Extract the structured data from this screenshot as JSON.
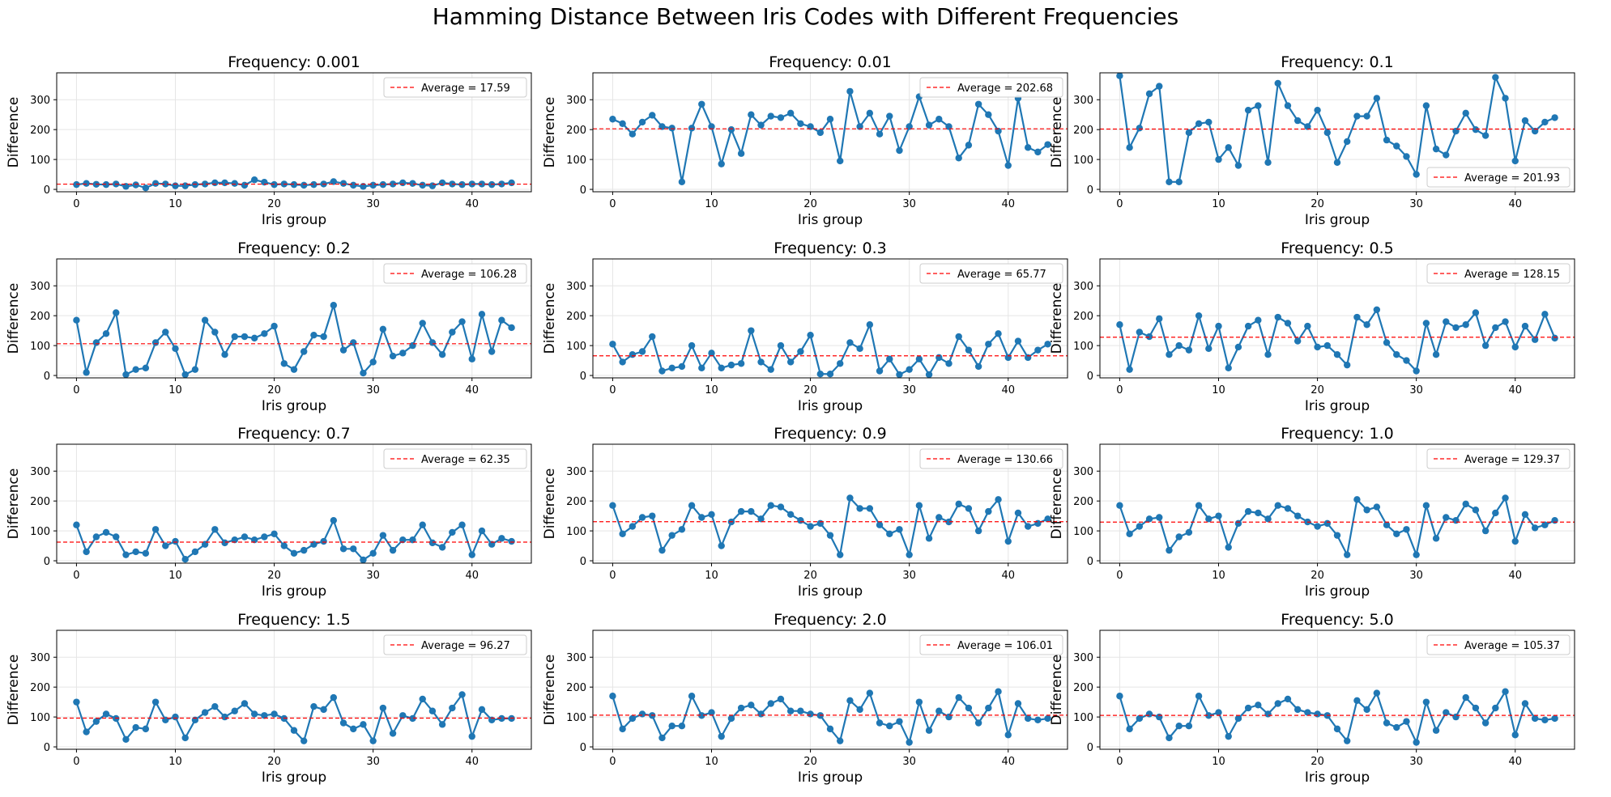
{
  "suptitle": "Hamming Distance Between Iris Codes with Different Frequencies",
  "colors": {
    "line": "#1f77b4",
    "average": "#ff0000",
    "grid": "#e5e5e5",
    "axis": "#000000"
  },
  "chart_data": [
    {
      "type": "line",
      "title": "Frequency: 0.001",
      "xlabel": "Iris group",
      "ylabel": "Difference",
      "xlim": [
        -2,
        46
      ],
      "ylim": [
        -8,
        390
      ],
      "xticks": [
        0,
        10,
        20,
        30,
        40
      ],
      "yticks": [
        0,
        100,
        200,
        300
      ],
      "grid": true,
      "legend_loc": "upper right",
      "average": 17.59,
      "legend_label": "Average = 17.59",
      "values": [
        16,
        20,
        17,
        16,
        18,
        10,
        15,
        5,
        20,
        18,
        12,
        12,
        16,
        18,
        22,
        22,
        20,
        14,
        32,
        24,
        16,
        18,
        16,
        14,
        16,
        18,
        26,
        20,
        14,
        10,
        14,
        16,
        18,
        22,
        20,
        14,
        12,
        22,
        18,
        16,
        18,
        18,
        16,
        18,
        22
      ]
    },
    {
      "type": "line",
      "title": "Frequency: 0.01",
      "xlabel": "Iris group",
      "ylabel": "Difference",
      "xlim": [
        -2,
        46
      ],
      "ylim": [
        -8,
        390
      ],
      "xticks": [
        0,
        10,
        20,
        30,
        40
      ],
      "yticks": [
        0,
        100,
        200,
        300
      ],
      "grid": true,
      "legend_loc": "upper right",
      "average": 202.68,
      "legend_label": "Average = 202.68",
      "values": [
        235,
        220,
        185,
        225,
        248,
        210,
        205,
        25,
        205,
        285,
        210,
        85,
        200,
        120,
        250,
        215,
        245,
        240,
        255,
        220,
        210,
        190,
        235,
        95,
        328,
        210,
        255,
        185,
        245,
        130,
        210,
        310,
        215,
        235,
        210,
        105,
        148,
        285,
        250,
        195,
        80,
        305,
        140,
        125,
        150
      ]
    },
    {
      "type": "line",
      "title": "Frequency: 0.1",
      "xlabel": "Iris group",
      "ylabel": "Difference",
      "xlim": [
        -2,
        46
      ],
      "ylim": [
        -8,
        390
      ],
      "xticks": [
        0,
        10,
        20,
        30,
        40
      ],
      "yticks": [
        0,
        100,
        200,
        300
      ],
      "grid": true,
      "legend_loc": "lower right",
      "average": 201.93,
      "legend_label": "Average = 201.93",
      "values": [
        380,
        140,
        205,
        320,
        345,
        25,
        25,
        190,
        220,
        225,
        100,
        140,
        80,
        265,
        280,
        90,
        355,
        280,
        230,
        210,
        265,
        190,
        90,
        160,
        245,
        245,
        305,
        165,
        145,
        110,
        50,
        280,
        135,
        115,
        195,
        255,
        200,
        180,
        375,
        305,
        95,
        230,
        195,
        225,
        240
      ]
    },
    {
      "type": "line",
      "title": "Frequency: 0.2",
      "xlabel": "Iris group",
      "ylabel": "Difference",
      "xlim": [
        -2,
        46
      ],
      "ylim": [
        -8,
        390
      ],
      "xticks": [
        0,
        10,
        20,
        30,
        40
      ],
      "yticks": [
        0,
        100,
        200,
        300
      ],
      "grid": true,
      "legend_loc": "upper right",
      "average": 106.28,
      "legend_label": "Average = 106.28",
      "values": [
        185,
        10,
        110,
        140,
        210,
        3,
        20,
        25,
        110,
        145,
        90,
        3,
        20,
        185,
        145,
        70,
        130,
        130,
        125,
        140,
        165,
        40,
        20,
        80,
        135,
        130,
        235,
        85,
        110,
        8,
        45,
        155,
        65,
        75,
        100,
        175,
        110,
        70,
        145,
        180,
        55,
        205,
        80,
        185,
        160
      ]
    },
    {
      "type": "line",
      "title": "Frequency: 0.3",
      "xlabel": "Iris group",
      "ylabel": "Difference",
      "xlim": [
        -2,
        46
      ],
      "ylim": [
        -8,
        390
      ],
      "xticks": [
        0,
        10,
        20,
        30,
        40
      ],
      "yticks": [
        0,
        100,
        200,
        300
      ],
      "grid": true,
      "legend_loc": "upper right",
      "average": 65.77,
      "legend_label": "Average = 65.77",
      "values": [
        105,
        45,
        70,
        80,
        130,
        15,
        25,
        30,
        100,
        25,
        75,
        25,
        35,
        40,
        150,
        45,
        20,
        100,
        45,
        80,
        135,
        5,
        5,
        40,
        110,
        90,
        170,
        15,
        55,
        3,
        20,
        55,
        3,
        60,
        40,
        130,
        85,
        30,
        105,
        140,
        60,
        115,
        60,
        85,
        105
      ]
    },
    {
      "type": "line",
      "title": "Frequency: 0.5",
      "xlabel": "Iris group",
      "ylabel": "Difference",
      "xlim": [
        -2,
        46
      ],
      "ylim": [
        -8,
        390
      ],
      "xticks": [
        0,
        10,
        20,
        30,
        40
      ],
      "yticks": [
        0,
        100,
        200,
        300
      ],
      "grid": true,
      "legend_loc": "upper right",
      "average": 128.15,
      "legend_label": "Average = 128.15",
      "values": [
        170,
        20,
        145,
        130,
        190,
        70,
        100,
        85,
        200,
        90,
        165,
        25,
        95,
        165,
        185,
        70,
        195,
        175,
        115,
        165,
        95,
        100,
        70,
        35,
        195,
        170,
        220,
        110,
        70,
        50,
        15,
        175,
        70,
        180,
        160,
        170,
        210,
        100,
        160,
        180,
        95,
        165,
        120,
        205,
        125
      ]
    },
    {
      "type": "line",
      "title": "Frequency: 0.7",
      "xlabel": "Iris group",
      "ylabel": "Difference",
      "xlim": [
        -2,
        46
      ],
      "ylim": [
        -8,
        390
      ],
      "xticks": [
        0,
        10,
        20,
        30,
        40
      ],
      "yticks": [
        0,
        100,
        200,
        300
      ],
      "grid": true,
      "legend_loc": "upper right",
      "average": 62.35,
      "legend_label": "Average = 62.35",
      "values": [
        120,
        30,
        80,
        95,
        80,
        20,
        30,
        25,
        105,
        50,
        65,
        5,
        30,
        55,
        105,
        60,
        70,
        80,
        70,
        80,
        90,
        50,
        25,
        35,
        55,
        65,
        135,
        40,
        40,
        3,
        25,
        85,
        35,
        70,
        70,
        120,
        60,
        45,
        95,
        120,
        20,
        100,
        55,
        75,
        65
      ]
    },
    {
      "type": "line",
      "title": "Frequency: 0.9",
      "xlabel": "Iris group",
      "ylabel": "Difference",
      "xlim": [
        -2,
        46
      ],
      "ylim": [
        -8,
        390
      ],
      "xticks": [
        0,
        10,
        20,
        30,
        40
      ],
      "yticks": [
        0,
        100,
        200,
        300
      ],
      "grid": true,
      "legend_loc": "upper right",
      "average": 130.66,
      "legend_label": "Average = 130.66",
      "values": [
        185,
        90,
        115,
        145,
        150,
        35,
        85,
        105,
        185,
        145,
        155,
        50,
        130,
        165,
        165,
        140,
        185,
        180,
        155,
        135,
        115,
        125,
        85,
        20,
        210,
        175,
        175,
        120,
        90,
        105,
        20,
        185,
        75,
        145,
        130,
        190,
        175,
        100,
        165,
        205,
        65,
        160,
        115,
        125,
        140
      ]
    },
    {
      "type": "line",
      "title": "Frequency: 1.0",
      "xlabel": "Iris group",
      "ylabel": "Difference",
      "xlim": [
        -2,
        46
      ],
      "ylim": [
        -8,
        390
      ],
      "xticks": [
        0,
        10,
        20,
        30,
        40
      ],
      "yticks": [
        0,
        100,
        200,
        300
      ],
      "grid": true,
      "legend_loc": "upper right",
      "average": 129.37,
      "legend_label": "Average = 129.37",
      "values": [
        185,
        90,
        115,
        140,
        145,
        35,
        80,
        95,
        185,
        140,
        150,
        45,
        125,
        165,
        160,
        140,
        185,
        175,
        150,
        130,
        115,
        125,
        85,
        20,
        205,
        170,
        180,
        120,
        90,
        105,
        20,
        185,
        75,
        145,
        135,
        190,
        170,
        100,
        160,
        210,
        65,
        155,
        110,
        120,
        135
      ]
    },
    {
      "type": "line",
      "title": "Frequency: 1.5",
      "xlabel": "Iris group",
      "ylabel": "Difference",
      "xlim": [
        -2,
        46
      ],
      "ylim": [
        -8,
        390
      ],
      "xticks": [
        0,
        10,
        20,
        30,
        40
      ],
      "yticks": [
        0,
        100,
        200,
        300
      ],
      "grid": true,
      "legend_loc": "upper right",
      "average": 96.27,
      "legend_label": "Average = 96.27",
      "values": [
        150,
        50,
        85,
        110,
        95,
        25,
        65,
        60,
        150,
        90,
        100,
        30,
        90,
        115,
        135,
        100,
        120,
        145,
        110,
        105,
        110,
        95,
        55,
        20,
        135,
        125,
        165,
        80,
        60,
        75,
        20,
        130,
        45,
        105,
        95,
        160,
        120,
        75,
        130,
        175,
        35,
        125,
        90,
        95,
        95
      ]
    },
    {
      "type": "line",
      "title": "Frequency: 2.0",
      "xlabel": "Iris group",
      "ylabel": "Difference",
      "xlim": [
        -2,
        46
      ],
      "ylim": [
        -8,
        390
      ],
      "xticks": [
        0,
        10,
        20,
        30,
        40
      ],
      "yticks": [
        0,
        100,
        200,
        300
      ],
      "grid": true,
      "legend_loc": "upper right",
      "average": 106.01,
      "legend_label": "Average = 106.01",
      "values": [
        170,
        60,
        95,
        110,
        105,
        30,
        70,
        70,
        170,
        105,
        115,
        35,
        95,
        130,
        140,
        110,
        145,
        160,
        120,
        120,
        110,
        105,
        60,
        20,
        155,
        125,
        180,
        80,
        70,
        85,
        15,
        150,
        55,
        120,
        100,
        165,
        130,
        80,
        130,
        185,
        40,
        145,
        95,
        90,
        95
      ]
    },
    {
      "type": "line",
      "title": "Frequency: 5.0",
      "xlabel": "Iris group",
      "ylabel": "Difference",
      "xlim": [
        -2,
        46
      ],
      "ylim": [
        -8,
        390
      ],
      "xticks": [
        0,
        10,
        20,
        30,
        40
      ],
      "yticks": [
        0,
        100,
        200,
        300
      ],
      "grid": true,
      "legend_loc": "upper right",
      "average": 105.37,
      "legend_label": "Average = 105.37",
      "values": [
        170,
        60,
        95,
        110,
        100,
        30,
        70,
        70,
        170,
        105,
        115,
        35,
        95,
        130,
        140,
        110,
        145,
        160,
        125,
        115,
        110,
        105,
        60,
        20,
        155,
        125,
        180,
        80,
        65,
        85,
        15,
        150,
        55,
        115,
        100,
        165,
        130,
        80,
        130,
        185,
        40,
        145,
        95,
        90,
        95
      ]
    }
  ]
}
